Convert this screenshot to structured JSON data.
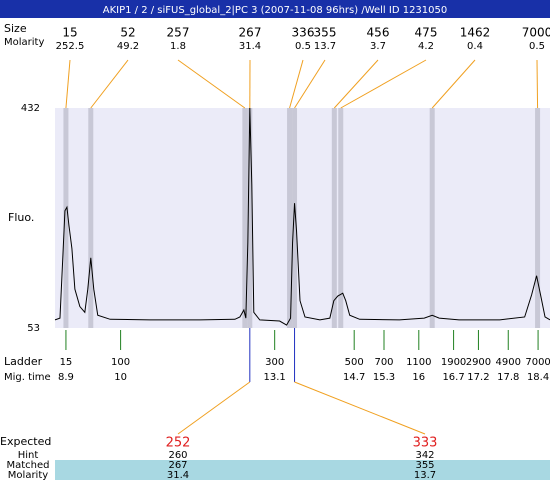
{
  "chart_data": {
    "type": "line",
    "title": "AKIP1 / 2 / siFUS_global_2|PC 3 (2007-11-08 96hrs) /Well ID 1231050",
    "y_label": "Fluo.",
    "ylim": [
      53,
      432
    ],
    "yticks": [
      53,
      432
    ],
    "xlim": [
      8.68,
      18.64
    ],
    "x": [
      8.68,
      8.78,
      8.84,
      8.88,
      8.92,
      8.96,
      9.02,
      9.08,
      9.18,
      9.28,
      9.34,
      9.4,
      9.46,
      9.54,
      9.79,
      10.59,
      11.6,
      12.3,
      12.4,
      12.48,
      12.52,
      12.56,
      12.6,
      12.64,
      12.68,
      12.8,
      13.2,
      13.34,
      13.42,
      13.46,
      13.5,
      13.54,
      13.61,
      13.71,
      14.01,
      14.21,
      14.29,
      14.37,
      14.47,
      14.53,
      14.61,
      14.81,
      15.61,
      16.11,
      16.27,
      16.41,
      16.81,
      17.63,
      18.13,
      18.27,
      18.37,
      18.45,
      18.54,
      18.64
    ],
    "values": [
      67,
      70,
      180,
      255,
      261,
      230,
      190,
      120,
      90,
      80,
      120,
      174,
      120,
      75,
      68,
      67,
      67,
      68,
      72,
      84,
      70,
      200,
      432,
      300,
      80,
      67,
      65,
      58,
      70,
      200,
      268,
      220,
      100,
      72,
      67,
      70,
      100,
      108,
      113,
      100,
      75,
      68,
      67,
      70,
      75,
      70,
      67,
      67,
      72,
      110,
      143,
      110,
      72,
      67
    ],
    "peaks": {
      "size_label": "Size",
      "molarity_label": "Molarity",
      "sizes": [
        15,
        52,
        257,
        267,
        336,
        355,
        456,
        475,
        1462,
        7000
      ],
      "molarity": [
        252.5,
        49.2,
        1.8,
        31.4,
        0.5,
        13.7,
        3.7,
        4.2,
        0.4,
        0.5
      ],
      "times": [
        8.9,
        9.4,
        12.5,
        12.6,
        13.4,
        13.5,
        14.3,
        14.43,
        16.27,
        18.39
      ]
    },
    "ladder": {
      "label": "Ladder",
      "time_label": "Mig. time",
      "sizes": [
        15,
        100,
        300,
        500,
        700,
        1100,
        1900,
        2900,
        4900,
        7000
      ],
      "times": [
        8.9,
        10,
        13.1,
        14.7,
        15.3,
        16,
        16.7,
        17.2,
        17.8,
        18.4
      ]
    },
    "expected": {
      "label": "Expected",
      "hint_label": "Hint",
      "matched_label": "Matched",
      "molarity_label": "Molarity",
      "values": [
        252,
        333
      ],
      "hint": [
        260,
        342
      ],
      "matched": [
        267,
        355
      ],
      "molarity": [
        31.4,
        13.7
      ]
    }
  }
}
